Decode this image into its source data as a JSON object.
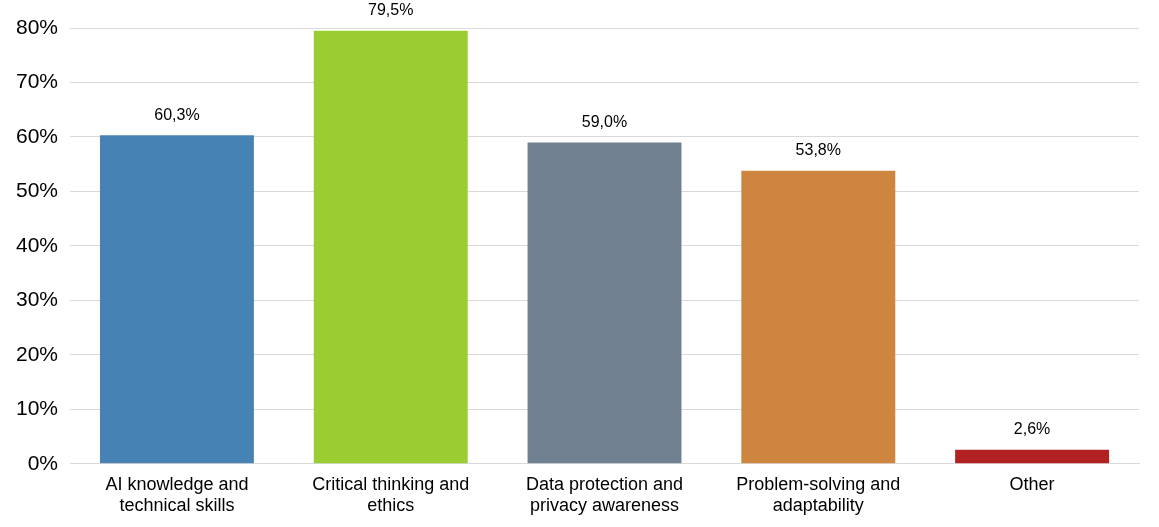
{
  "chart_data": {
    "type": "bar",
    "categories": [
      "AI knowledge and technical skills",
      "Critical thinking and ethics",
      "Data protection and privacy awareness",
      "Problem-solving and adaptability",
      "Other"
    ],
    "values": [
      60.3,
      79.5,
      59.0,
      53.8,
      2.6
    ],
    "colors": [
      "#4682b4",
      "#9acd32",
      "#708090",
      "#cd853f",
      "#b22222"
    ],
    "value_labels": [
      "60,3%",
      "79,5%",
      "59,0%",
      "53,8%",
      "2,6%"
    ],
    "ylim": [
      0,
      80
    ],
    "yticks": [
      {
        "value": 0,
        "label": "0%"
      },
      {
        "value": 10,
        "label": "10%"
      },
      {
        "value": 20,
        "label": "20%"
      },
      {
        "value": 30,
        "label": "30%"
      },
      {
        "value": 40,
        "label": "40%"
      },
      {
        "value": 50,
        "label": "50%"
      },
      {
        "value": 60,
        "label": "60%"
      },
      {
        "value": 70,
        "label": "70%"
      },
      {
        "value": 80,
        "label": "80%"
      }
    ],
    "grid": "y"
  }
}
